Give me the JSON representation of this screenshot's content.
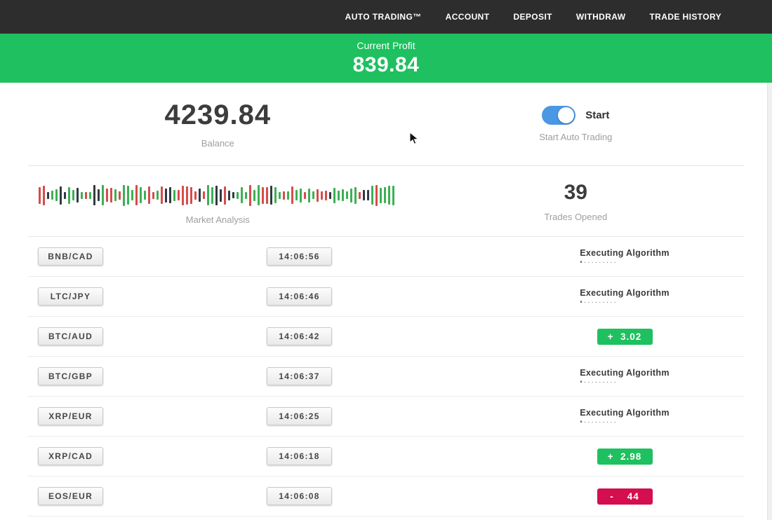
{
  "nav": {
    "items": [
      {
        "label": "AUTO TRADING™"
      },
      {
        "label": "ACCOUNT"
      },
      {
        "label": "DEPOSIT"
      },
      {
        "label": "WITHDRAW"
      },
      {
        "label": "TRADE HISTORY"
      }
    ]
  },
  "profit_banner": {
    "label": "Current Profit",
    "value": "839.84"
  },
  "account": {
    "balance_value": "4239.84",
    "balance_label": "Balance",
    "toggle_label": "Start",
    "toggle_caption": "Start Auto Trading",
    "auto_trading_on": true
  },
  "market": {
    "chart_label": "Market Analysis",
    "trades_opened_value": "39",
    "trades_opened_label": "Trades Opened",
    "chart": {
      "bar_count": 85,
      "seed": 13,
      "colors": {
        "up": "#3cb054",
        "down": "#d64c4c",
        "neutral": "#313a42"
      }
    }
  },
  "labels": {
    "loader_dots": "•·········"
  },
  "trades": [
    {
      "pair": "BNB/CAD",
      "time": "14:06:56",
      "status": "executing",
      "status_label": "Executing Algorithm"
    },
    {
      "pair": "LTC/JPY",
      "time": "14:06:46",
      "status": "executing",
      "status_label": "Executing Algorithm"
    },
    {
      "pair": "BTC/AUD",
      "time": "14:06:42",
      "status": "profit",
      "result": "+  3.02"
    },
    {
      "pair": "BTC/GBP",
      "time": "14:06:37",
      "status": "executing",
      "status_label": "Executing Algorithm"
    },
    {
      "pair": "XRP/EUR",
      "time": "14:06:25",
      "status": "executing",
      "status_label": "Executing Algorithm"
    },
    {
      "pair": "XRP/CAD",
      "time": "14:06:18",
      "status": "profit",
      "result": "+  2.98"
    },
    {
      "pair": "EOS/EUR",
      "time": "14:06:08",
      "status": "loss",
      "result": "-    44"
    }
  ],
  "colors": {
    "navbar": "#2d2d2d",
    "banner_green": "#1ec05f",
    "toggle_blue": "#4a97e4",
    "profit_green": "#1ec05f",
    "loss_red": "#d40e4f"
  }
}
